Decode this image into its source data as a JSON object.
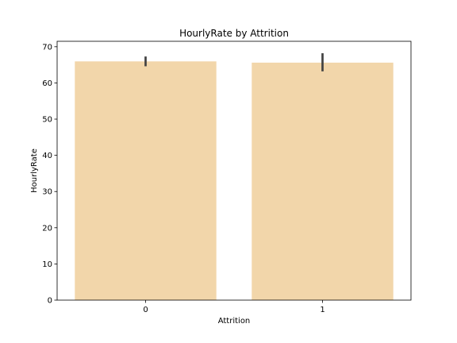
{
  "chart_data": {
    "type": "bar",
    "title": "HourlyRate by Attrition",
    "xlabel": "Attrition",
    "ylabel": "HourlyRate",
    "categories": [
      "0",
      "1"
    ],
    "values": [
      65.95,
      65.6
    ],
    "error_low": [
      64.6,
      63.2
    ],
    "error_high": [
      67.3,
      68.2
    ],
    "ylim": [
      0,
      71.5
    ],
    "yticks": [
      0,
      10,
      20,
      30,
      40,
      50,
      60,
      70
    ],
    "grid": false,
    "bar_color": "#f2d6aa",
    "error_color": "#424242"
  }
}
